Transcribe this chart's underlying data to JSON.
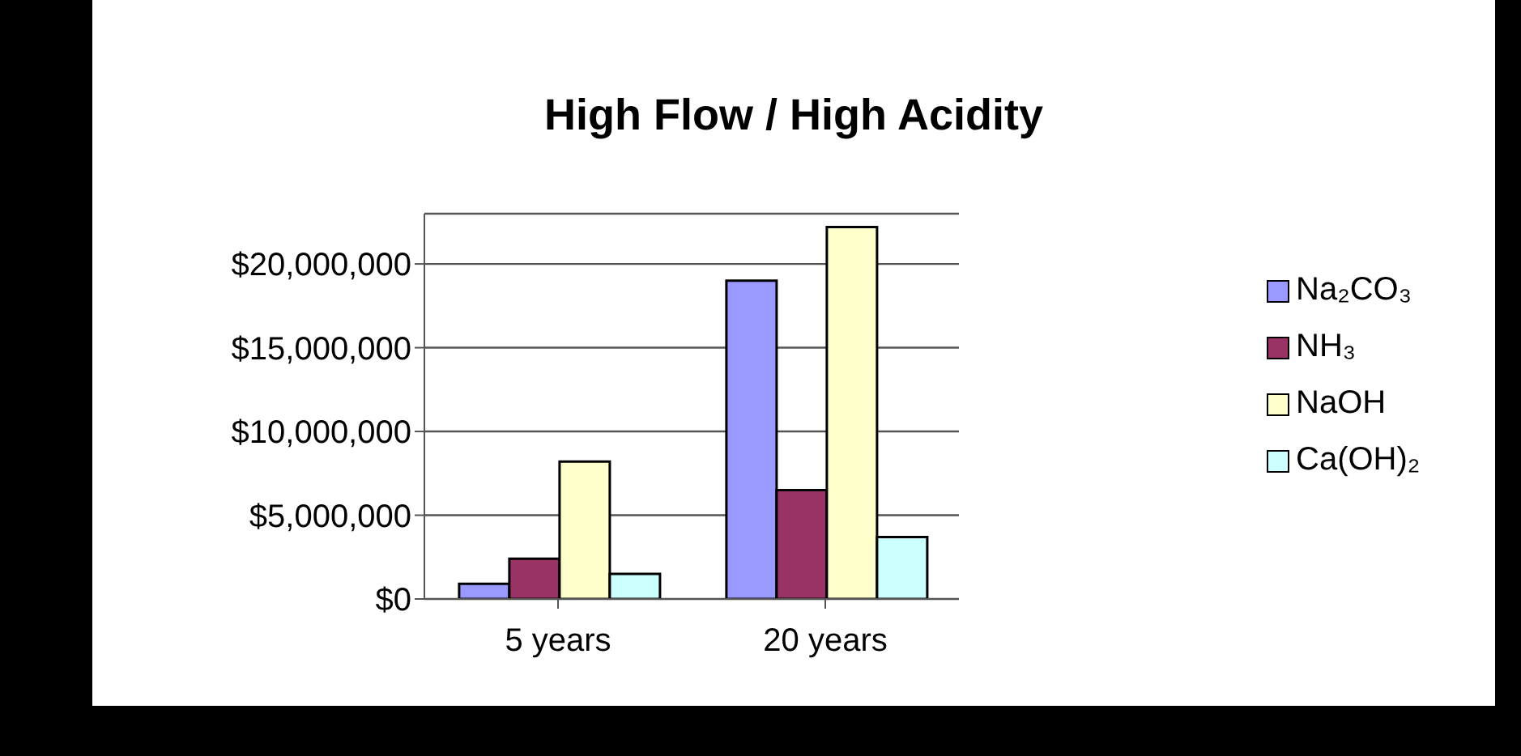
{
  "chart_data": {
    "type": "bar",
    "title": "High Flow / High Acidity",
    "categories": [
      "5 years",
      "20 years"
    ],
    "series": [
      {
        "name": "Na₂CO₃",
        "color": "#9999ff",
        "values": [
          900000,
          19000000
        ]
      },
      {
        "name": "NH₃",
        "color": "#993366",
        "values": [
          2400000,
          6500000
        ]
      },
      {
        "name": "NaOH",
        "color": "#ffffcc",
        "values": [
          8200000,
          22200000
        ]
      },
      {
        "name": "Ca(OH)₂",
        "color": "#ccffff",
        "values": [
          1500000,
          3700000
        ]
      }
    ],
    "ylim": [
      0,
      23000000
    ],
    "yticks": [
      {
        "value": 0,
        "label": "$0"
      },
      {
        "value": 5000000,
        "label": "$5,000,000"
      },
      {
        "value": 10000000,
        "label": "$10,000,000"
      },
      {
        "value": 15000000,
        "label": "$15,000,000"
      },
      {
        "value": 20000000,
        "label": "$20,000,000"
      }
    ],
    "grid": "y",
    "legend": "right"
  }
}
